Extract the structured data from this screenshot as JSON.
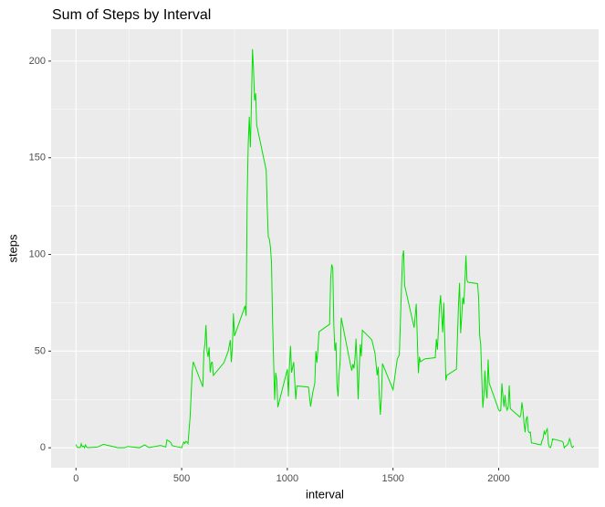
{
  "chart_data": {
    "type": "line",
    "title": "Sum of Steps by Interval",
    "x_label": "interval",
    "y_label": "steps",
    "x": [
      0,
      5,
      10,
      15,
      20,
      25,
      30,
      35,
      40,
      45,
      50,
      55,
      100,
      130,
      200,
      230,
      245,
      300,
      325,
      345,
      400,
      425,
      430,
      440,
      450,
      455,
      500,
      505,
      510,
      515,
      520,
      525,
      530,
      540,
      550,
      555,
      600,
      605,
      610,
      615,
      620,
      625,
      630,
      635,
      640,
      645,
      650,
      700,
      720,
      730,
      735,
      740,
      745,
      750,
      800,
      805,
      810,
      815,
      820,
      825,
      830,
      835,
      840,
      845,
      850,
      855,
      900,
      905,
      910,
      915,
      920,
      925,
      930,
      935,
      940,
      945,
      950,
      955,
      1000,
      1005,
      1010,
      1015,
      1020,
      1030,
      1040,
      1045,
      1100,
      1110,
      1120,
      1130,
      1135,
      1140,
      1145,
      1150,
      1200,
      1205,
      1210,
      1215,
      1220,
      1225,
      1230,
      1235,
      1240,
      1245,
      1250,
      1255,
      1300,
      1305,
      1310,
      1315,
      1320,
      1325,
      1330,
      1335,
      1340,
      1345,
      1350,
      1355,
      1400,
      1415,
      1425,
      1430,
      1435,
      1440,
      1445,
      1450,
      1500,
      1520,
      1530,
      1535,
      1540,
      1545,
      1550,
      1555,
      1600,
      1610,
      1620,
      1625,
      1630,
      1650,
      1700,
      1705,
      1710,
      1715,
      1720,
      1725,
      1730,
      1735,
      1740,
      1745,
      1750,
      1755,
      1800,
      1810,
      1815,
      1820,
      1825,
      1830,
      1835,
      1840,
      1845,
      1850,
      1855,
      1900,
      1905,
      1910,
      1915,
      1920,
      1925,
      1930,
      1935,
      1940,
      1945,
      1950,
      1955,
      2000,
      2005,
      2010,
      2015,
      2020,
      2025,
      2030,
      2035,
      2040,
      2045,
      2050,
      2055,
      2100,
      2105,
      2110,
      2115,
      2120,
      2125,
      2130,
      2135,
      2140,
      2145,
      2150,
      2155,
      2200,
      2205,
      2210,
      2215,
      2220,
      2225,
      2230,
      2235,
      2240,
      2245,
      2250,
      2255,
      2300,
      2305,
      2310,
      2315,
      2320,
      2325,
      2330,
      2335,
      2340,
      2345,
      2350,
      2355
    ],
    "series": [
      {
        "name": "steps",
        "color": "#00e000",
        "values": [
          1.7,
          0.3,
          0.1,
          0.2,
          0.1,
          2.1,
          0.5,
          0.9,
          0,
          1.5,
          0.3,
          0.1,
          0.3,
          1.8,
          0,
          0,
          0.7,
          0,
          1.5,
          0.1,
          1.2,
          0.4,
          4.1,
          3.5,
          2.5,
          1.1,
          0,
          1.6,
          3,
          2.2,
          3.3,
          3,
          2.1,
          16,
          39.5,
          44.5,
          31.5,
          49.3,
          53.8,
          63.5,
          50,
          47,
          52,
          39,
          44,
          44.2,
          37.4,
          44,
          49.9,
          55.7,
          44.3,
          52.3,
          69.5,
          57.8,
          73.4,
          68.2,
          129.4,
          157.5,
          171.2,
          155.4,
          177.3,
          206.2,
          195.9,
          179.6,
          183.4,
          167,
          143.5,
          124,
          109,
          108,
          103.7,
          95.9,
          66.2,
          45.2,
          24.8,
          38.8,
          35,
          21,
          40.6,
          26.5,
          42.4,
          52.7,
          38.9,
          44.3,
          25,
          32,
          31.4,
          21.3,
          28.4,
          33.4,
          50,
          44,
          51.6,
          60,
          63.9,
          87.5,
          94.8,
          92.8,
          63.4,
          50.2,
          54.5,
          32.4,
          26.5,
          37.7,
          45.1,
          67.3,
          42.3,
          39.9,
          43.3,
          41,
          46.2,
          56.4,
          42.8,
          25.1,
          39.9,
          53.5,
          47.3,
          60.8,
          55.8,
          48.7,
          37.5,
          41.8,
          27.1,
          17.1,
          26.1,
          43.6,
          30,
          45.9,
          48.1,
          65.3,
          82.9,
          98.7,
          102.1,
          84,
          62.1,
          74.5,
          38.6,
          47,
          44.5,
          46,
          46.6,
          56.3,
          50.7,
          61.2,
          72.7,
          78.9,
          68.9,
          59.7,
          75.1,
          56.5,
          34.8,
          37.5,
          40.7,
          74.7,
          85.3,
          59.3,
          67.8,
          77.7,
          74.2,
          85.3,
          99.5,
          86.6,
          85.6,
          84.9,
          77.8,
          58,
          53.4,
          36.3,
          20.7,
          27.4,
          40,
          30.2,
          25.5,
          45.7,
          33.5,
          19.6,
          19,
          19.3,
          33.3,
          26.8,
          21.2,
          27.3,
          21.3,
          19.5,
          21.3,
          32.3,
          20.2,
          15.9,
          17.2,
          23.5,
          19.2,
          12.5,
          8,
          14.7,
          16.3,
          8.7,
          7.8,
          8.1,
          2.6,
          1.5,
          3.7,
          4.8,
          8.5,
          7.1,
          8.7,
          9.8,
          2.2,
          0.3,
          0.1,
          1.6,
          4.6,
          3.3,
          2.8,
          0,
          0.8,
          1,
          1.6,
          2.6,
          4.7,
          3.3,
          0.6,
          0.2,
          1.1
        ]
      }
    ],
    "xlim": [
      -117.75,
      2472.75
    ],
    "ylim": [
      -10.31,
      216.48
    ],
    "xticks": [
      0,
      500,
      1000,
      1500,
      2000
    ],
    "yticks": [
      0,
      50,
      100,
      150,
      200
    ],
    "grid": true
  }
}
